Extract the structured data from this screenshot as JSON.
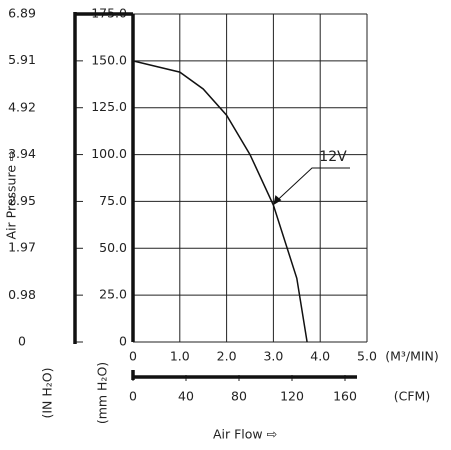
{
  "chart_data": {
    "type": "line",
    "x_label": "Air Flow ⇨",
    "y_label": "Air Pressure ⇨",
    "x_unit": "(M³/MIN)",
    "x2_unit": "(CFM)",
    "y_unit": "(mm H₂O)",
    "y2_unit": "(IN H₂O)",
    "xlim": [
      0,
      5
    ],
    "xticks": [
      0,
      {
        "value": 1,
        "label": "1.0"
      },
      {
        "value": 2,
        "label": "2.0"
      },
      {
        "value": 3,
        "label": "3.0"
      },
      {
        "value": 4,
        "label": "4.0"
      },
      {
        "value": 5,
        "label": "5.0"
      }
    ],
    "x2lim": [
      0,
      176.6
    ],
    "x2ticks": [
      0,
      40,
      80,
      120,
      160
    ],
    "ylim": [
      0,
      175
    ],
    "yticks": [
      0,
      {
        "value": 25,
        "label": "25.0"
      },
      {
        "value": 50,
        "label": "50.0"
      },
      {
        "value": 75,
        "label": "75.0"
      },
      {
        "value": 100,
        "label": "100.0"
      },
      {
        "value": 125,
        "label": "125.0"
      },
      {
        "value": 150,
        "label": "150.0"
      },
      {
        "value": 175,
        "label": "175.0"
      }
    ],
    "y2lim": [
      0,
      6.89
    ],
    "y2ticks": [
      0,
      0.98,
      1.97,
      2.95,
      3.94,
      4.92,
      5.91,
      6.89
    ],
    "grid": true,
    "series": [
      {
        "name": "12V",
        "color": "#111",
        "x": [
          0,
          0.5,
          1.0,
          1.5,
          2.0,
          2.5,
          3.0,
          3.5,
          3.72
        ],
        "values": [
          150,
          147,
          144,
          135,
          121,
          100,
          73,
          34,
          0
        ]
      }
    ]
  }
}
